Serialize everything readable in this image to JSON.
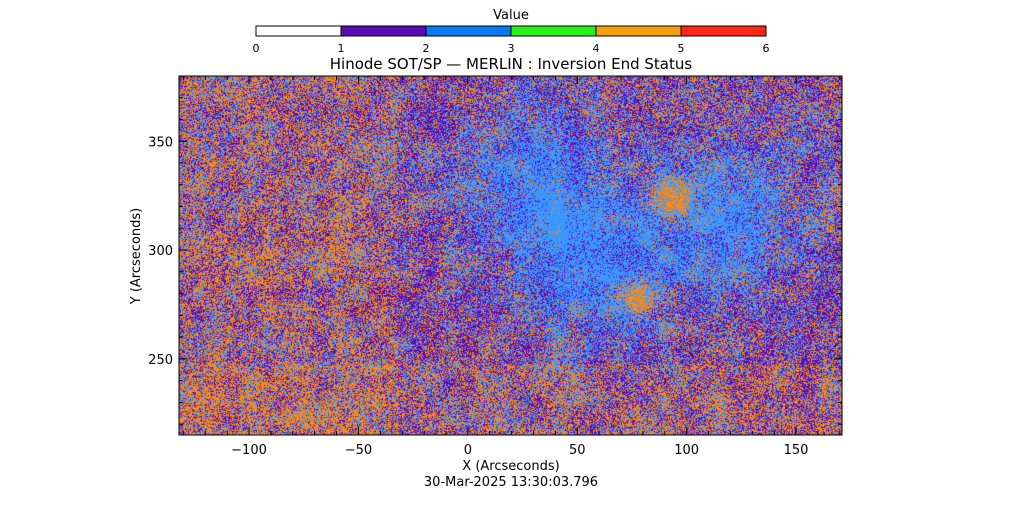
{
  "colorbar": {
    "title": "Value",
    "min": 0,
    "max": 6,
    "ticks": [
      "0",
      "1",
      "2",
      "3",
      "4",
      "5",
      "6"
    ],
    "bands": [
      {
        "from": 0,
        "to": 1,
        "color": "#ffffff"
      },
      {
        "from": 1,
        "to": 2,
        "color": "#5a0cb4"
      },
      {
        "from": 2,
        "to": 3,
        "color": "#0a78f0"
      },
      {
        "from": 3,
        "to": 4,
        "color": "#28f014"
      },
      {
        "from": 4,
        "to": 5,
        "color": "#f5a00a"
      },
      {
        "from": 5,
        "to": 6,
        "color": "#fa2814"
      }
    ]
  },
  "chart_data": {
    "type": "heatmap",
    "title": "Hinode SOT/SP — MERLIN : Inversion End Status",
    "xlabel": "X (Arcseconds)",
    "ylabel": "Y (Arcseconds)",
    "xlim": [
      -132,
      171
    ],
    "ylim": [
      215,
      380
    ],
    "xticks": [
      -100,
      -50,
      0,
      50,
      100,
      150
    ],
    "yticks": [
      250,
      300,
      350
    ],
    "grid": false,
    "values_present": [
      1,
      2,
      4
    ],
    "dominant_colors": {
      "1": "#5a0cb4",
      "2": "#3c96ff",
      "4": "#f58c1e"
    },
    "regions": [
      {
        "description": "value 2 patch",
        "x": 30,
        "y": 330,
        "value": 2
      },
      {
        "description": "value 2 patch",
        "x": 120,
        "y": 315,
        "value": 2
      },
      {
        "description": "value 2 patch",
        "x": 60,
        "y": 290,
        "value": 2
      },
      {
        "description": "value 4 patch",
        "x": 78,
        "y": 278,
        "value": 4
      },
      {
        "description": "value 4 patch",
        "x": 93,
        "y": 323,
        "value": 4
      }
    ]
  },
  "footer": {
    "timestamp": "30-Mar-2025 13:30:03.796"
  }
}
